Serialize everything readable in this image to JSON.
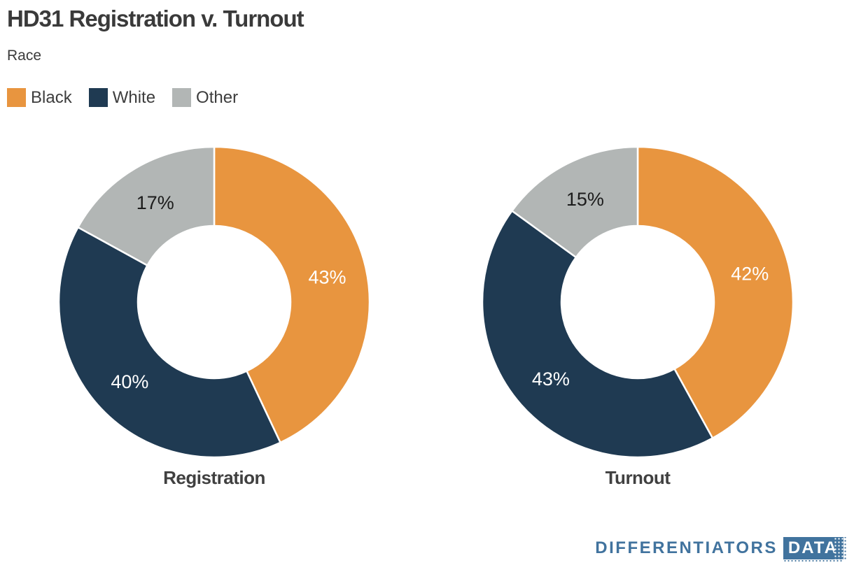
{
  "header": {
    "title": "HD31 Registration v. Turnout",
    "subtitle": "Race"
  },
  "legend": {
    "items": [
      {
        "label": "Black",
        "color": "#e8953f"
      },
      {
        "label": "White",
        "color": "#1f3a52"
      },
      {
        "label": "Other",
        "color": "#b2b6b5"
      }
    ]
  },
  "chart_data": [
    {
      "type": "pie",
      "subtype": "donut",
      "title": "Registration",
      "categories": [
        "Black",
        "White",
        "Other"
      ],
      "values": [
        43,
        40,
        17
      ],
      "unit": "%",
      "colors": [
        "#e8953f",
        "#1f3a52",
        "#b2b6b5"
      ],
      "label_colors": [
        "#ffffff",
        "#ffffff",
        "#1c1c1c"
      ],
      "start_angle_deg": 0,
      "direction": "clockwise",
      "inner_radius_ratio": 0.49,
      "slice_border_color": "#ffffff"
    },
    {
      "type": "pie",
      "subtype": "donut",
      "title": "Turnout",
      "categories": [
        "Black",
        "White",
        "Other"
      ],
      "values": [
        42,
        43,
        15
      ],
      "unit": "%",
      "colors": [
        "#e8953f",
        "#1f3a52",
        "#b2b6b5"
      ],
      "label_colors": [
        "#ffffff",
        "#ffffff",
        "#1c1c1c"
      ],
      "start_angle_deg": 0,
      "direction": "clockwise",
      "inner_radius_ratio": 0.49,
      "slice_border_color": "#ffffff"
    }
  ],
  "footer": {
    "brand_text": "DIFFERENTIATORS",
    "brand_badge": "DATA",
    "brand_color": "#41739e"
  }
}
